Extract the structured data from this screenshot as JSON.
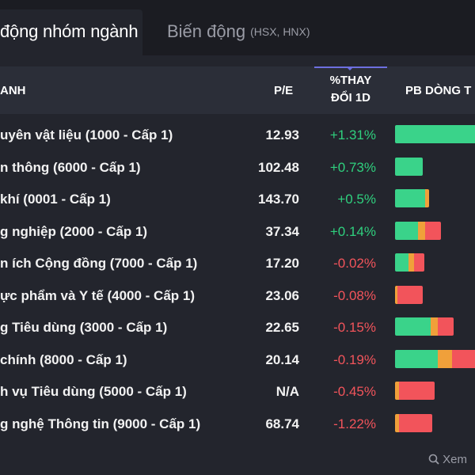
{
  "tabs": {
    "active_label": "động nhóm ngành",
    "inactive_label": "Biến động",
    "inactive_sub": "(HSX, HNX)"
  },
  "header": {
    "name": "ANH",
    "pe": "P/E",
    "change_line1": "%THAY",
    "change_line2": "ĐỔI 1D",
    "flow": "PB DÒNG T"
  },
  "colors": {
    "green": "#3ad38a",
    "orange": "#f0a03a",
    "red": "#f2545b"
  },
  "rows": [
    {
      "name": "uyên vật liệu (1000 - Cấp 1)",
      "pe": "12.93",
      "change": "+1.31%",
      "dir": "pos",
      "flow": [
        [
          1.0,
          "green"
        ]
      ],
      "flow_total": 1.0
    },
    {
      "name": "n thông (6000 - Cấp 1)",
      "pe": "102.48",
      "change": "+0.73%",
      "dir": "pos",
      "flow": [
        [
          1.0,
          "green"
        ]
      ],
      "flow_total": 0.29
    },
    {
      "name": " khí (0001 - Cấp 1)",
      "pe": "143.70",
      "change": "+0.5%",
      "dir": "pos",
      "flow": [
        [
          0.88,
          "green"
        ],
        [
          0.12,
          "orange"
        ]
      ],
      "flow_total": 0.36
    },
    {
      "name": "g nghiệp (2000 - Cấp 1)",
      "pe": "37.34",
      "change": "+0.14%",
      "dir": "pos",
      "flow": [
        [
          0.5,
          "green"
        ],
        [
          0.16,
          "orange"
        ],
        [
          0.34,
          "red"
        ]
      ],
      "flow_total": 0.48
    },
    {
      "name": "n ích Cộng đồng (7000 - Cấp 1)",
      "pe": "17.20",
      "change": "-0.02%",
      "dir": "neg",
      "flow": [
        [
          0.45,
          "green"
        ],
        [
          0.2,
          "orange"
        ],
        [
          0.35,
          "red"
        ]
      ],
      "flow_total": 0.31
    },
    {
      "name": "ực phẩm và Y tế (4000 - Cấp 1)",
      "pe": "23.06",
      "change": "-0.08%",
      "dir": "neg",
      "flow": [
        [
          0.1,
          "orange"
        ],
        [
          0.9,
          "red"
        ]
      ],
      "flow_total": 0.29
    },
    {
      "name": "g Tiêu dùng (3000 - Cấp 1)",
      "pe": "22.65",
      "change": "-0.15%",
      "dir": "neg",
      "flow": [
        [
          0.6,
          "green"
        ],
        [
          0.12,
          "orange"
        ],
        [
          0.28,
          "red"
        ]
      ],
      "flow_total": 0.62
    },
    {
      "name": "chính (8000 - Cấp 1)",
      "pe": "20.14",
      "change": "-0.19%",
      "dir": "neg",
      "flow": [
        [
          0.45,
          "green"
        ],
        [
          0.15,
          "orange"
        ],
        [
          0.4,
          "red"
        ]
      ],
      "flow_total": 1.0
    },
    {
      "name": "h vụ Tiêu dùng (5000 - Cấp 1)",
      "pe": "N/A",
      "change": "-0.45%",
      "dir": "neg",
      "flow": [
        [
          0.1,
          "orange"
        ],
        [
          0.9,
          "red"
        ]
      ],
      "flow_total": 0.42
    },
    {
      "name": "g nghệ Thông tin (9000 - Cấp 1)",
      "pe": "68.74",
      "change": "-1.22%",
      "dir": "neg",
      "flow": [
        [
          0.1,
          "orange"
        ],
        [
          0.9,
          "red"
        ]
      ],
      "flow_total": 0.39
    }
  ],
  "footer": {
    "label": "Xem"
  }
}
